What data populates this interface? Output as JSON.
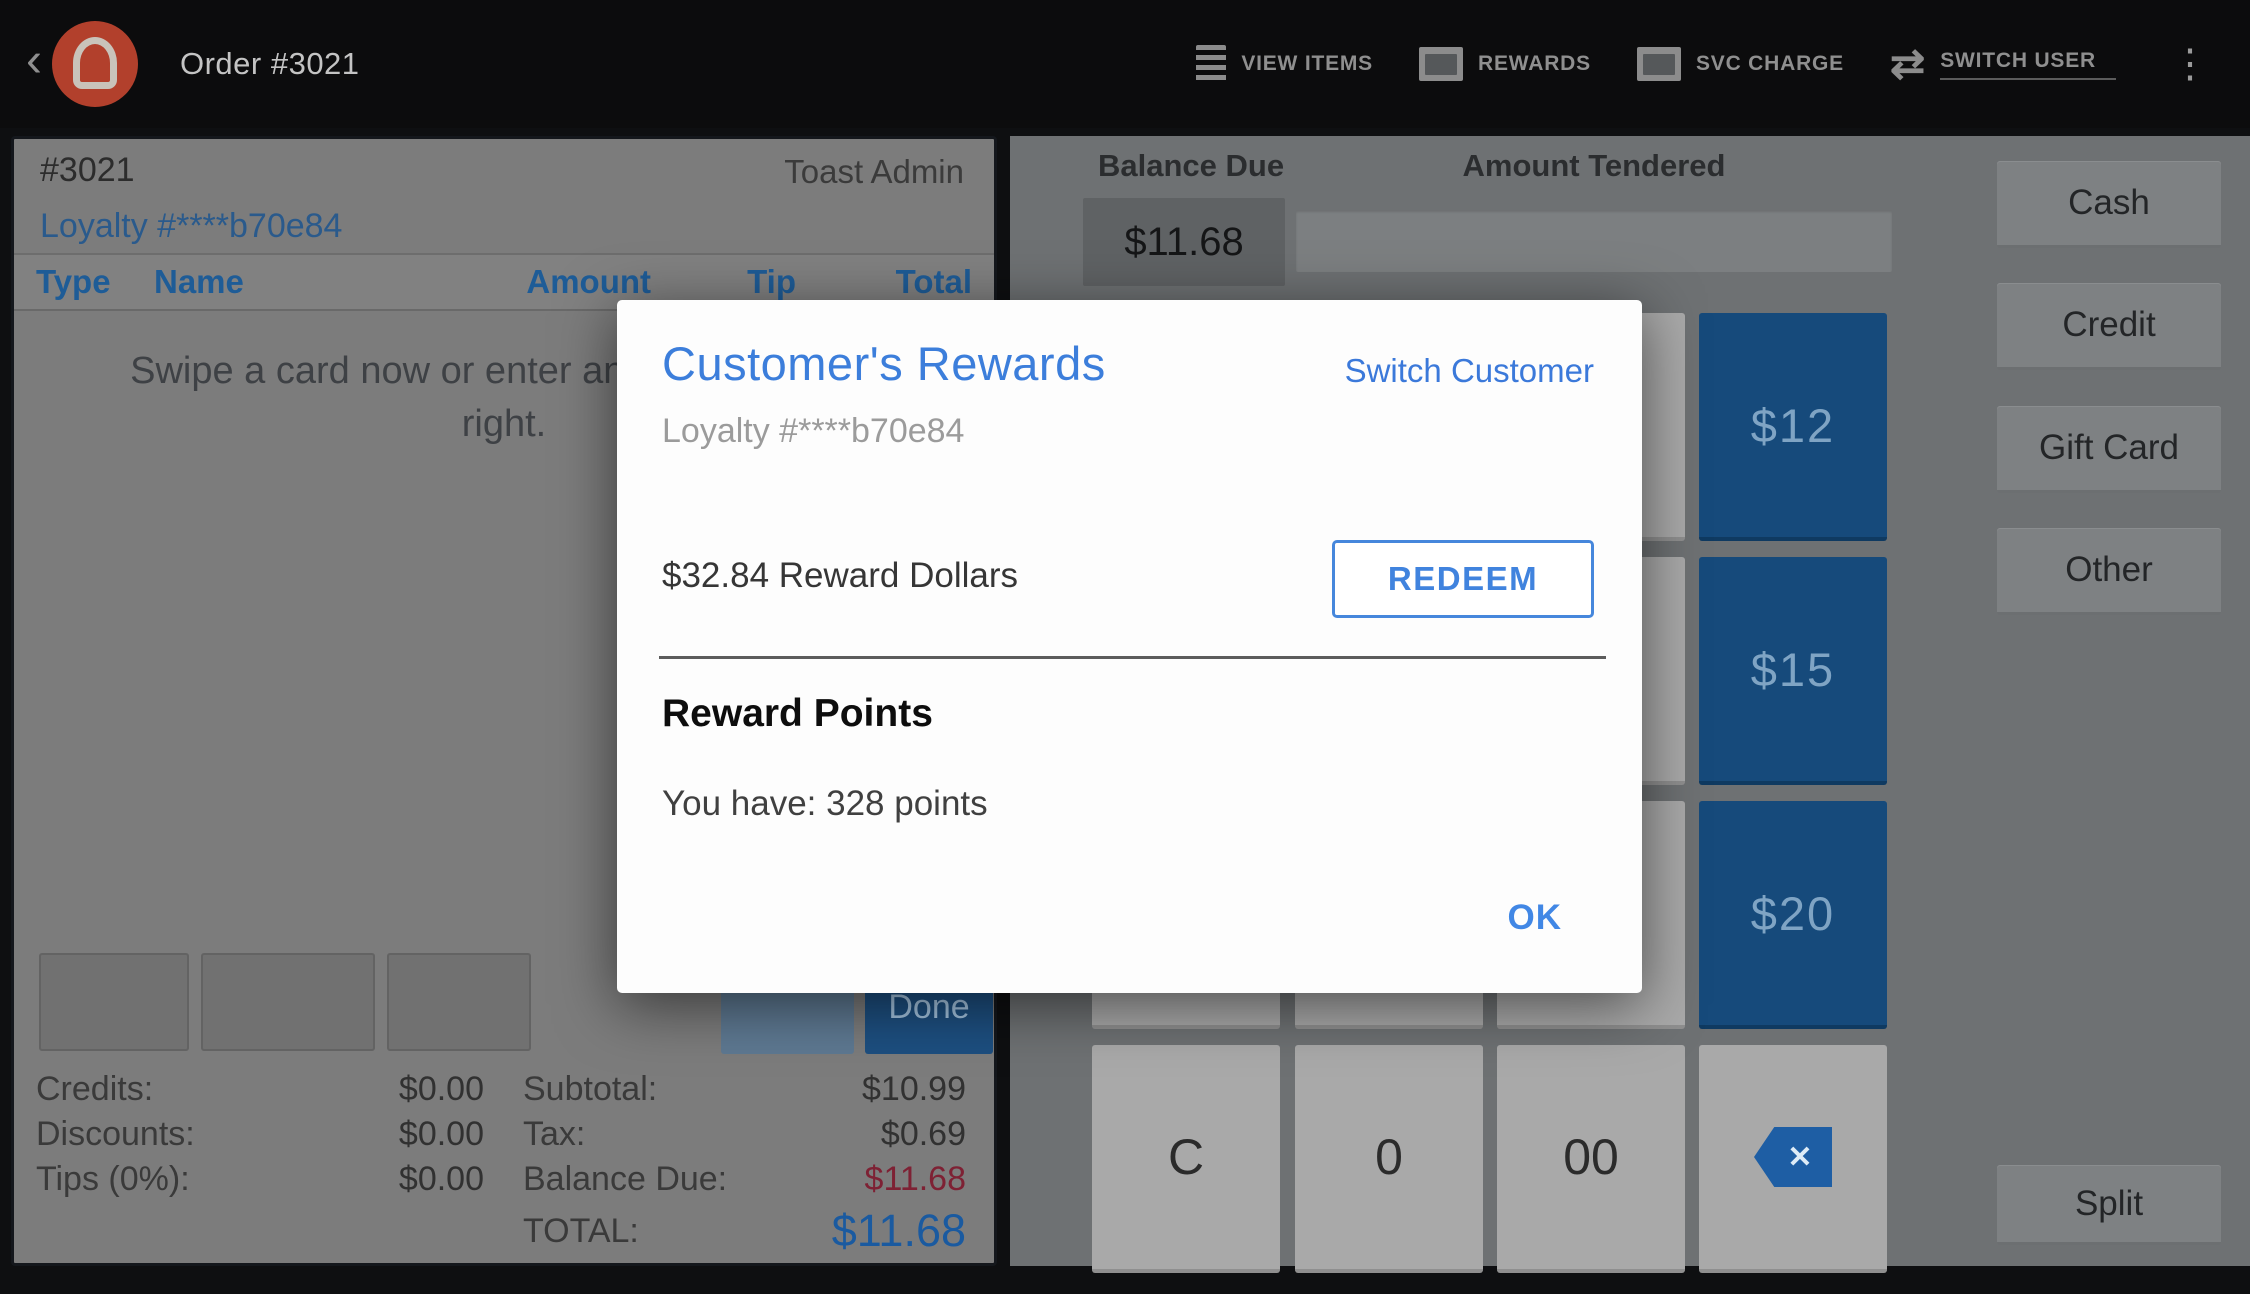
{
  "colors": {
    "accent_blue": "#3c7edb",
    "logo_orange": "#b2402c",
    "quick_button_blue": "#164a7b",
    "balance_due_red": "#7e2134",
    "total_blue": "#1a5aa0"
  },
  "topbar": {
    "back": "‹",
    "title": "Order #3021",
    "actions": [
      {
        "label": "VIEW ITEMS"
      },
      {
        "label": "REWARDS"
      },
      {
        "label": "SVC CHARGE"
      },
      {
        "label": "SWITCH USER"
      }
    ],
    "overflow": "⋮"
  },
  "check": {
    "number": "#3021",
    "server": "Toast Admin",
    "loyalty": "Loyalty #****b70e84",
    "columns": [
      "Type",
      "Name",
      "Amount",
      "Tip",
      "Total"
    ],
    "message_line1": "Swipe a card now or enter an amount on the",
    "message_line2": "right.",
    "done_label": "Done",
    "totals": {
      "credits_label": "Credits:",
      "credits_value": "$0.00",
      "discounts_label": "Discounts:",
      "discounts_value": "$0.00",
      "tips_label": "Tips (0%):",
      "tips_value": "$0.00",
      "subtotal_label": "Subtotal:",
      "subtotal_value": "$10.99",
      "tax_label": "Tax:",
      "tax_value": "$0.69",
      "balance_due_label": "Balance Due:",
      "balance_due_value": "$11.68",
      "total_label": "TOTAL:",
      "total_value": "$11.68"
    }
  },
  "payment": {
    "balance_due_label": "Balance Due",
    "balance_due_value": "$11.68",
    "amount_tendered_label": "Amount Tendered",
    "amount_tendered_value": "",
    "quick_amounts": [
      "$12",
      "$15",
      "$20"
    ],
    "numpad": [
      "C",
      "0",
      "00"
    ],
    "backspace_glyph": "✕",
    "tender_buttons": [
      "Cash",
      "Credit",
      "Gift Card",
      "Other"
    ],
    "split_label": "Split"
  },
  "modal": {
    "title": "Customer's Rewards",
    "switch_customer": "Switch Customer",
    "loyalty": "Loyalty #****b70e84",
    "reward_dollars": "$32.84 Reward Dollars",
    "redeem_label": "REDEEM",
    "points_title": "Reward Points",
    "points_text": "You have: 328 points",
    "ok_label": "OK"
  }
}
